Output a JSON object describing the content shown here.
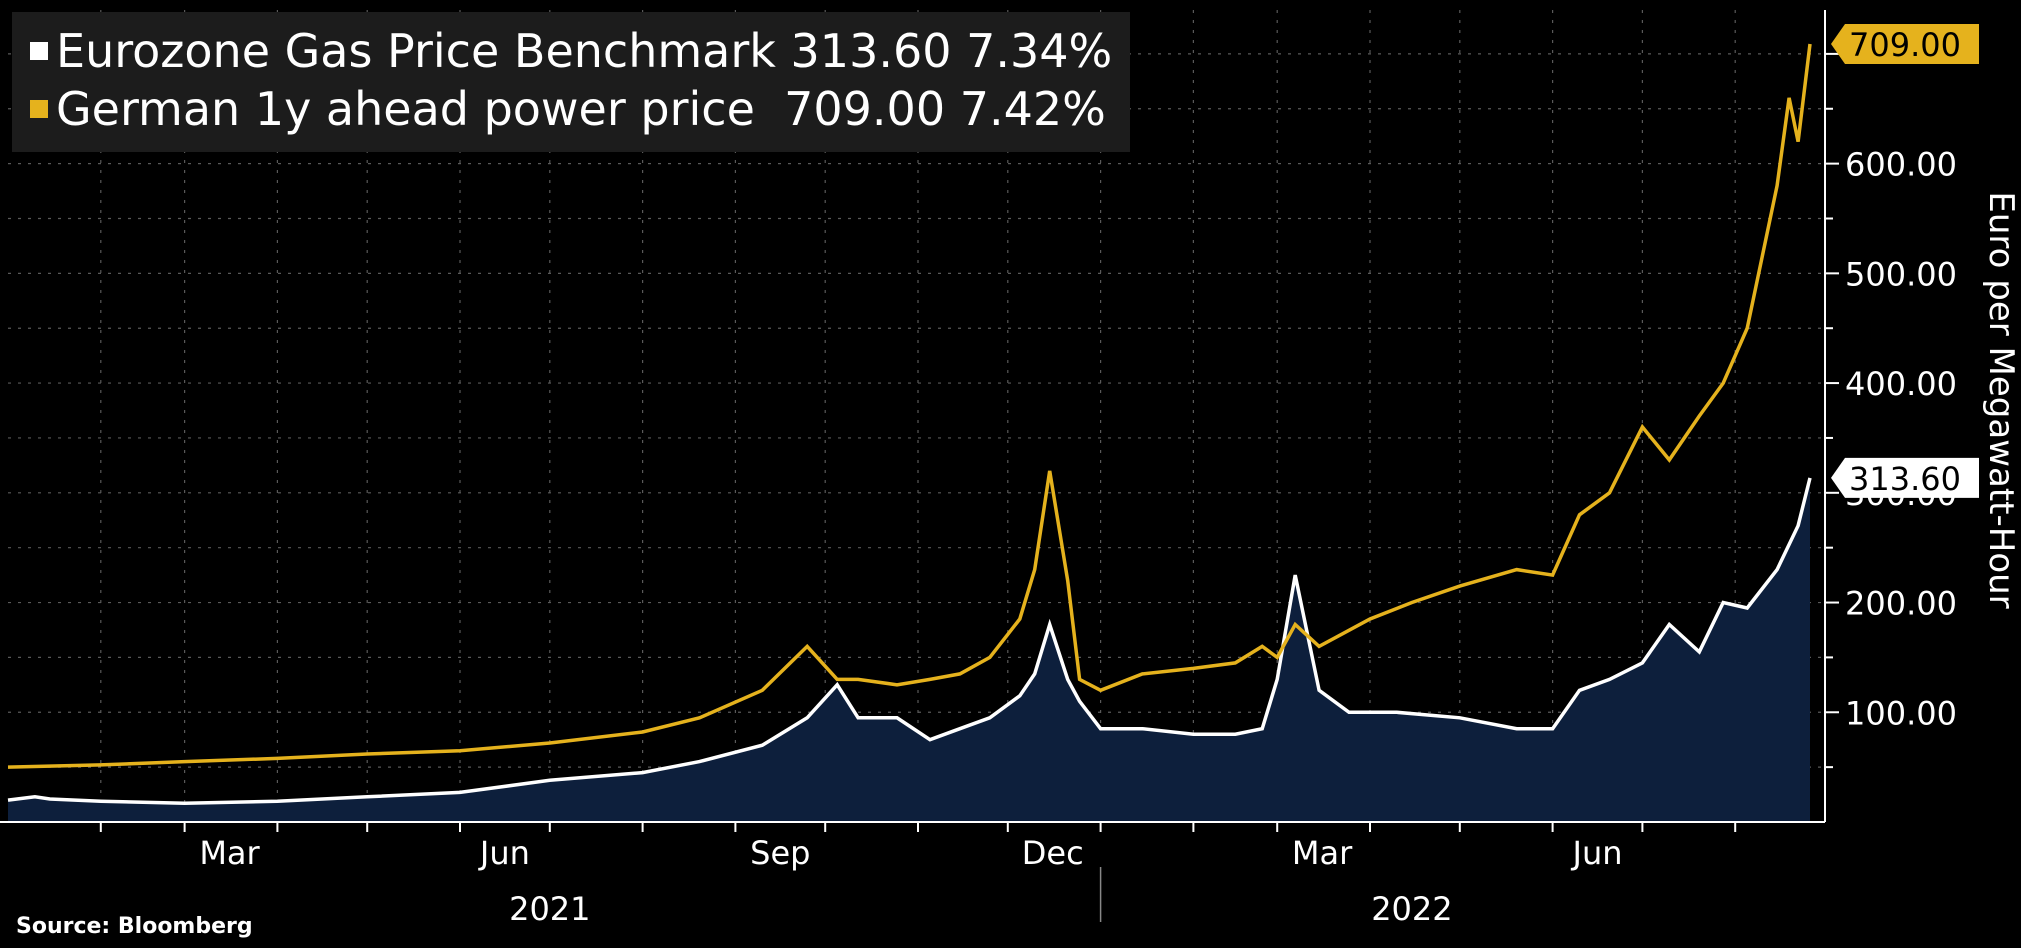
{
  "legend": {
    "gas": {
      "label": "Eurozone Gas Price Benchmark",
      "value": "313.60",
      "change": "7.34%"
    },
    "power": {
      "label": "German 1y ahead power price",
      "value": "709.00",
      "change": "7.42%"
    }
  },
  "source": "Source: Bloomberg",
  "colors": {
    "background": "#000000",
    "gas": "#ffffff",
    "gas_fill": "#0d1f3c",
    "power": "#e5b21d",
    "grid": "#5a5a5a",
    "legend_bg": "#1c1c1c"
  },
  "chart_data": {
    "type": "line",
    "ylabel": "Euro per Megawatt-Hour",
    "ylim": [
      0,
      740
    ],
    "y_ticks": [
      "100.00",
      "200.00",
      "300.00",
      "400.00",
      "500.00",
      "600.00"
    ],
    "y_tick_values": [
      100,
      200,
      300,
      400,
      500,
      600
    ],
    "x_ticks": [
      {
        "label": "Mar",
        "date": "2021-03-01"
      },
      {
        "label": "Jun",
        "date": "2021-06-01"
      },
      {
        "label": "Sep",
        "date": "2021-09-01"
      },
      {
        "label": "Dec",
        "date": "2021-12-01"
      },
      {
        "label": "Mar",
        "date": "2022-03-01"
      },
      {
        "label": "Jun",
        "date": "2022-06-01"
      }
    ],
    "years": [
      {
        "label": "2021",
        "date": "2021-07-01"
      },
      {
        "label": "2022",
        "date": "2022-04-15"
      }
    ],
    "xlim": [
      "2021-01-01",
      "2022-08-31"
    ],
    "end_labels": {
      "gas": "313.60",
      "power": "709.00"
    },
    "series": [
      {
        "name": "Eurozone Gas Price Benchmark",
        "key": "gas",
        "fill": true,
        "x": [
          "2021-01-01",
          "2021-01-10",
          "2021-01-15",
          "2021-02-01",
          "2021-03-01",
          "2021-04-01",
          "2021-05-01",
          "2021-06-01",
          "2021-07-01",
          "2021-08-01",
          "2021-08-20",
          "2021-09-10",
          "2021-09-25",
          "2021-10-05",
          "2021-10-12",
          "2021-10-25",
          "2021-11-05",
          "2021-11-15",
          "2021-11-25",
          "2021-12-05",
          "2021-12-10",
          "2021-12-15",
          "2021-12-21",
          "2021-12-25",
          "2022-01-01",
          "2022-01-15",
          "2022-02-01",
          "2022-02-15",
          "2022-02-24",
          "2022-03-01",
          "2022-03-07",
          "2022-03-15",
          "2022-03-25",
          "2022-04-10",
          "2022-05-01",
          "2022-05-20",
          "2022-06-01",
          "2022-06-10",
          "2022-06-20",
          "2022-07-01",
          "2022-07-10",
          "2022-07-20",
          "2022-07-28",
          "2022-08-05",
          "2022-08-15",
          "2022-08-22",
          "2022-08-26"
        ],
        "y": [
          20,
          23,
          21,
          19,
          17,
          19,
          23,
          27,
          38,
          45,
          55,
          70,
          95,
          125,
          95,
          95,
          75,
          85,
          95,
          115,
          135,
          180,
          130,
          110,
          85,
          85,
          80,
          80,
          85,
          130,
          225,
          120,
          100,
          100,
          95,
          85,
          85,
          120,
          130,
          145,
          180,
          155,
          200,
          195,
          230,
          270,
          313.6
        ]
      },
      {
        "name": "German 1y ahead power price",
        "key": "power",
        "fill": false,
        "x": [
          "2021-01-01",
          "2021-02-01",
          "2021-03-01",
          "2021-04-01",
          "2021-05-01",
          "2021-06-01",
          "2021-07-01",
          "2021-08-01",
          "2021-08-20",
          "2021-09-10",
          "2021-09-25",
          "2021-10-05",
          "2021-10-12",
          "2021-10-25",
          "2021-11-05",
          "2021-11-15",
          "2021-11-25",
          "2021-12-05",
          "2021-12-10",
          "2021-12-15",
          "2021-12-21",
          "2021-12-25",
          "2022-01-01",
          "2022-01-15",
          "2022-02-01",
          "2022-02-15",
          "2022-02-24",
          "2022-03-01",
          "2022-03-07",
          "2022-03-15",
          "2022-04-01",
          "2022-04-15",
          "2022-05-01",
          "2022-05-20",
          "2022-06-01",
          "2022-06-10",
          "2022-06-20",
          "2022-07-01",
          "2022-07-10",
          "2022-07-20",
          "2022-07-28",
          "2022-08-05",
          "2022-08-15",
          "2022-08-19",
          "2022-08-22",
          "2022-08-26"
        ],
        "y": [
          50,
          52,
          55,
          58,
          62,
          65,
          72,
          82,
          95,
          120,
          160,
          130,
          130,
          125,
          130,
          135,
          150,
          185,
          230,
          320,
          220,
          130,
          120,
          135,
          140,
          145,
          160,
          150,
          180,
          160,
          185,
          200,
          215,
          230,
          225,
          280,
          300,
          360,
          330,
          370,
          400,
          450,
          580,
          660,
          620,
          709
        ]
      }
    ]
  }
}
